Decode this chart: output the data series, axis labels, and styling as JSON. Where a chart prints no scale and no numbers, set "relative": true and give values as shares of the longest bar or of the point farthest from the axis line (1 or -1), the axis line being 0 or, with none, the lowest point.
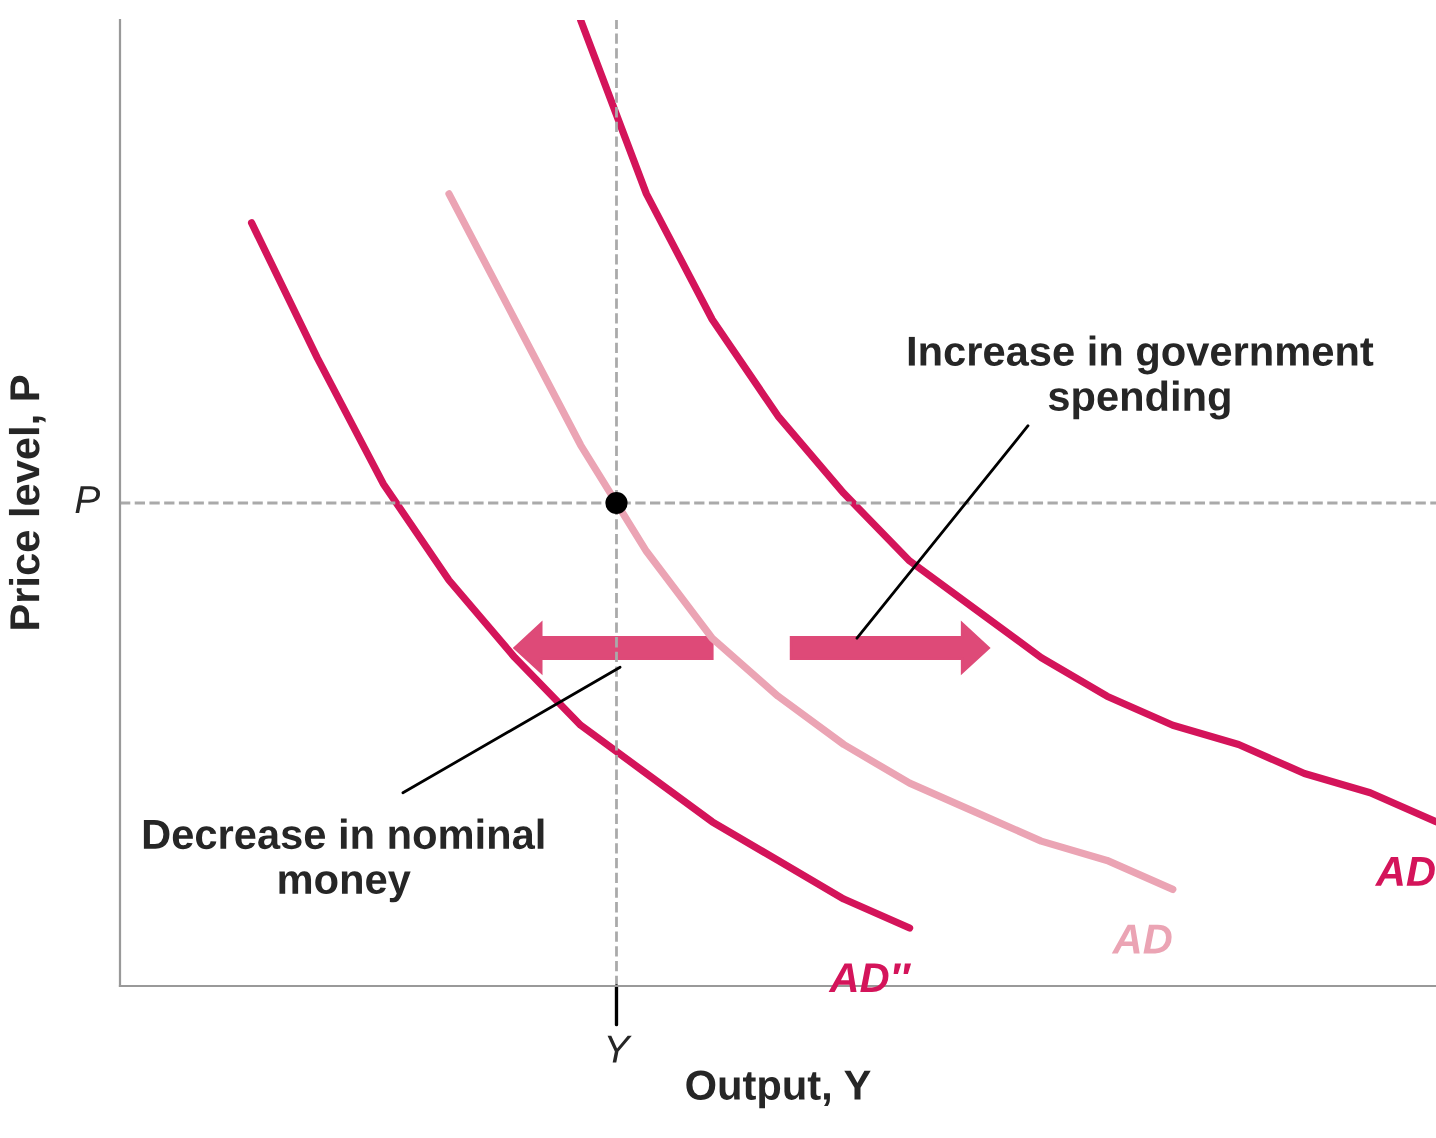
{
  "chart_data": {
    "type": "line",
    "relative": true,
    "xlabel": "Output, Y",
    "ylabel": "Price level, P",
    "categories": [
      null,
      null,
      null,
      null,
      null,
      null,
      null,
      null,
      null,
      null,
      null,
      null,
      null,
      null,
      null,
      null,
      null,
      null,
      null,
      null,
      null
    ],
    "series": [
      {
        "name": "AD″",
        "color": "#d4145a",
        "values": [
          null,
          null,
          0.79,
          0.65,
          0.52,
          0.42,
          0.34,
          0.27,
          0.22,
          0.17,
          0.13,
          0.09,
          0.06,
          null,
          null,
          null,
          null,
          null,
          null,
          null,
          null
        ]
      },
      {
        "name": "AD",
        "color": "#eba4b4",
        "values": [
          null,
          null,
          null,
          null,
          null,
          0.82,
          0.69,
          0.56,
          0.45,
          0.36,
          0.3,
          0.25,
          0.21,
          0.18,
          0.15,
          0.13,
          0.1,
          null,
          null,
          null,
          null
        ]
      },
      {
        "name": "AD",
        "color": "#d4145a",
        "values": [
          null,
          null,
          null,
          null,
          null,
          null,
          null,
          1.0,
          0.82,
          0.69,
          0.59,
          0.51,
          0.44,
          0.39,
          0.34,
          0.3,
          0.27,
          0.25,
          0.22,
          0.2,
          0.17
        ]
      }
    ],
    "ref_lines": [
      {
        "axis": "y",
        "value": 0.5,
        "label": "P",
        "color": "#aaaaaa",
        "line_style": "dashed"
      }
    ],
    "annotations": [
      "Increase in government spending",
      "Decrease in nominal money",
      "Y"
    ],
    "line_style": "solid",
    "marker": "none"
  }
}
